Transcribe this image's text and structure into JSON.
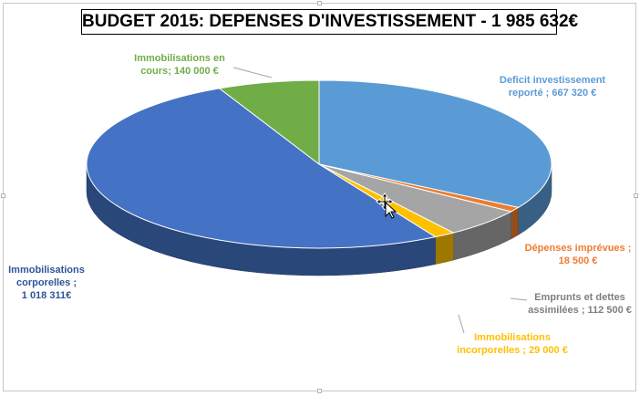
{
  "chart_data": {
    "type": "pie",
    "title": "BUDGET 2015: DEPENSES D'INVESTISSEMENT - 1 985 632€",
    "slices": [
      {
        "name": "Deficit investissement reporté",
        "value": 667320,
        "label_lines": [
          "Deficit investissement",
          "reporté ; 667 320 €"
        ],
        "color": "#5B9BD5",
        "label_color": "#5B9BD5"
      },
      {
        "name": "Dépenses imprévues",
        "value": 18500,
        "label_lines": [
          "Dépenses imprévues ;",
          "18 500 €"
        ],
        "color": "#ED7D31",
        "label_color": "#ED7D31"
      },
      {
        "name": "Emprunts et dettes assimilées",
        "value": 112500,
        "label_lines": [
          "Emprunts et dettes",
          "assimilées ; 112 500 €"
        ],
        "color": "#A5A5A5",
        "label_color": "#7F7F7F"
      },
      {
        "name": "Immobilisations incorporelles",
        "value": 29000,
        "label_lines": [
          "Immobilisations",
          "incorporelles ; 29 000 €"
        ],
        "color": "#FFC000",
        "label_color": "#FFC000"
      },
      {
        "name": "Immobilisations corporelles",
        "value": 1018311,
        "label_lines": [
          "Immobilisations",
          "corporelles ;",
          "1 018 311€"
        ],
        "color": "#4472C4",
        "label_color": "#2F5597"
      },
      {
        "name": "Immobilisations en cours",
        "value": 140000,
        "label_lines": [
          "Immobilisations en",
          "cours; 140 000 €"
        ],
        "color": "#70AD47",
        "label_color": "#70AD47"
      }
    ],
    "style": "3d-pie"
  }
}
